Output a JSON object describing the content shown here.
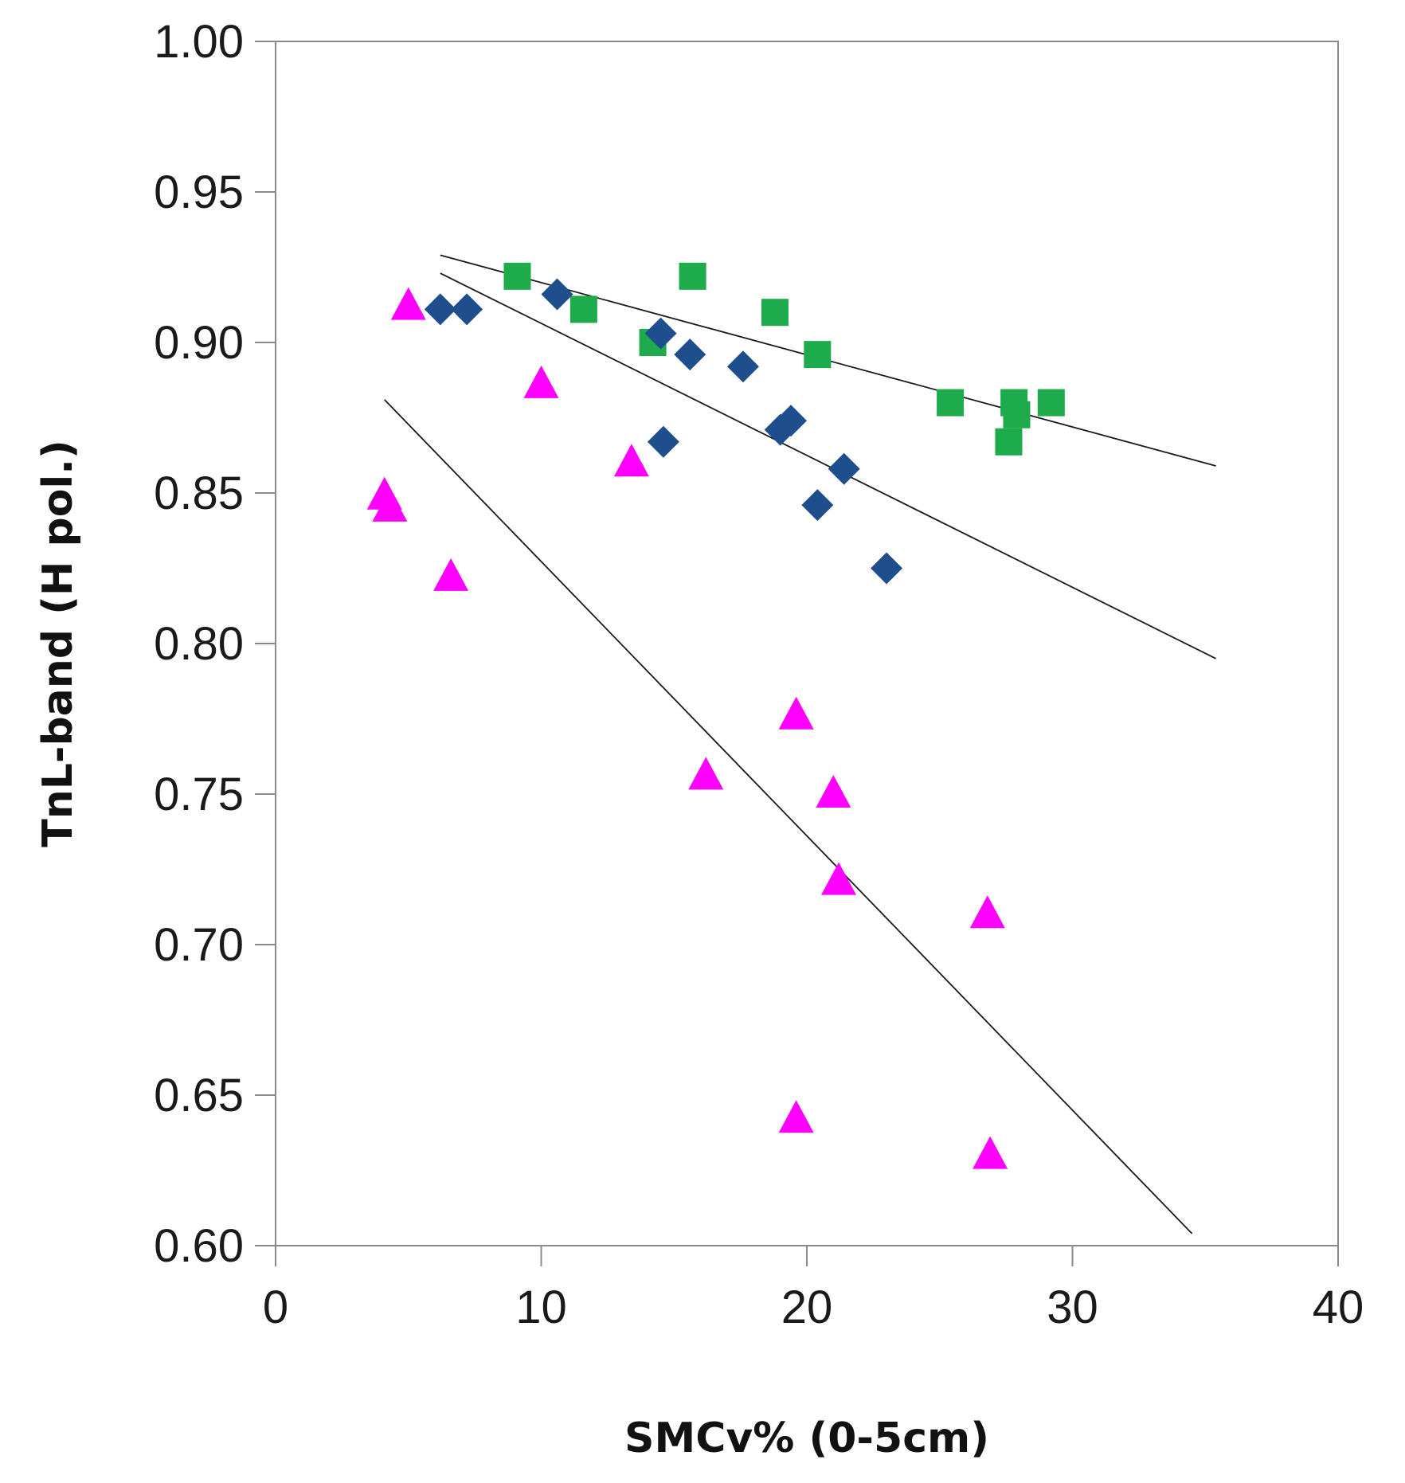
{
  "chart_data": {
    "type": "scatter",
    "title": "",
    "xlabel": "SMCv% (0-5cm)",
    "ylabel": "TnL-band (H pol.)",
    "xlim": [
      0,
      40
    ],
    "ylim": [
      0.6,
      1.0
    ],
    "x_ticks": [
      0,
      10,
      20,
      30,
      40
    ],
    "x_tick_labels": [
      "0",
      "10",
      "20",
      "30",
      "40"
    ],
    "y_ticks": [
      0.6,
      0.65,
      0.7,
      0.75,
      0.8,
      0.85,
      0.9,
      0.95,
      1.0
    ],
    "y_tick_labels": [
      "0.60",
      "0.65",
      "0.70",
      "0.75",
      "0.80",
      "0.85",
      "0.90",
      "0.95",
      "1.00"
    ],
    "grid": false,
    "legend": "none",
    "series": [
      {
        "name": "squares",
        "marker": "square",
        "color": "#1eab4b",
        "points": [
          [
            9.1,
            0.922
          ],
          [
            15.7,
            0.922
          ],
          [
            11.6,
            0.911
          ],
          [
            18.8,
            0.91
          ],
          [
            14.2,
            0.9
          ],
          [
            20.4,
            0.896
          ],
          [
            25.4,
            0.88
          ],
          [
            27.8,
            0.88
          ],
          [
            29.2,
            0.88
          ],
          [
            27.9,
            0.876
          ],
          [
            27.6,
            0.867
          ]
        ],
        "trendline": {
          "x": [
            6.2,
            35.4
          ],
          "y": [
            0.929,
            0.859
          ]
        }
      },
      {
        "name": "diamonds",
        "marker": "diamond",
        "color": "#1f4e8c",
        "points": [
          [
            6.2,
            0.911
          ],
          [
            7.2,
            0.911
          ],
          [
            10.6,
            0.916
          ],
          [
            14.5,
            0.903
          ],
          [
            15.6,
            0.896
          ],
          [
            17.6,
            0.892
          ],
          [
            19.0,
            0.871
          ],
          [
            19.4,
            0.874
          ],
          [
            14.6,
            0.867
          ],
          [
            21.4,
            0.858
          ],
          [
            20.4,
            0.846
          ],
          [
            23.0,
            0.825
          ]
        ],
        "trendline": {
          "x": [
            6.2,
            35.4
          ],
          "y": [
            0.923,
            0.795
          ]
        }
      },
      {
        "name": "triangles",
        "marker": "triangle",
        "color": "#ff00ff",
        "points": [
          [
            5.0,
            0.912
          ],
          [
            10.0,
            0.886
          ],
          [
            13.4,
            0.86
          ],
          [
            4.1,
            0.849
          ],
          [
            4.3,
            0.845
          ],
          [
            6.6,
            0.822
          ],
          [
            19.6,
            0.776
          ],
          [
            16.2,
            0.756
          ],
          [
            21.0,
            0.75
          ],
          [
            21.2,
            0.721
          ],
          [
            26.8,
            0.71
          ],
          [
            19.6,
            0.642
          ],
          [
            26.9,
            0.63
          ]
        ],
        "trendline": {
          "x": [
            4.1,
            34.5
          ],
          "y": [
            0.881,
            0.604
          ]
        }
      }
    ]
  }
}
